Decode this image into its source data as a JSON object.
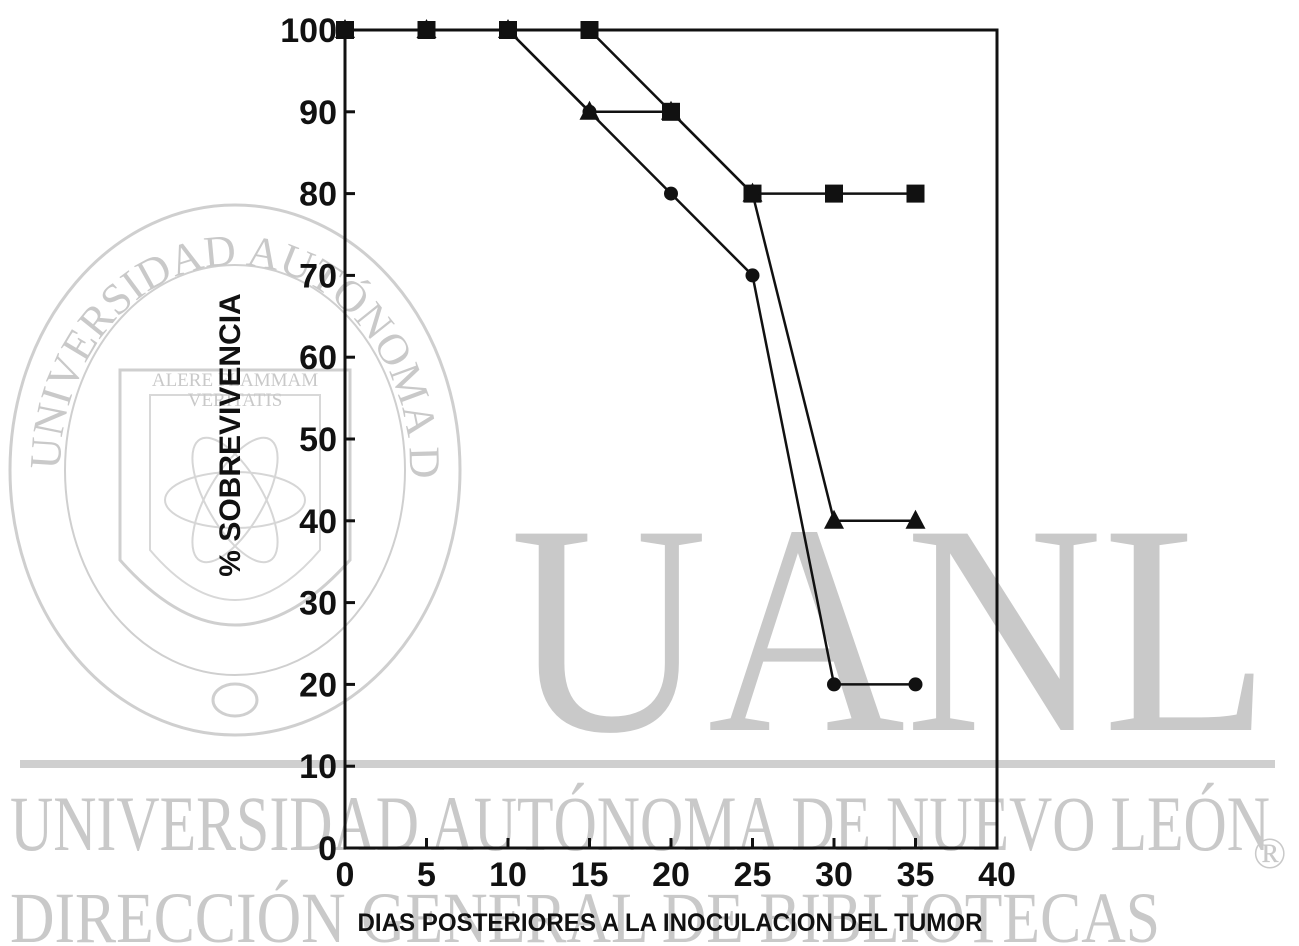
{
  "watermark": {
    "ring_text": "UNIVERSIDAD AUTÓNOMA DE NUEVO LEÓN",
    "motto_line1": "ALERE FLAMMAM",
    "motto_line2": "VERITATIS",
    "big_letters": "UANL",
    "university_line": "UNIVERSIDAD AUTÓNOMA DE NUEVO LEÓN",
    "direction_line": "DIRECCIÓN GENERAL DE BIBLIOTECAS",
    "registered_mark": "®",
    "color": "#c9c9c9"
  },
  "chart_data": {
    "type": "line",
    "title": "",
    "xlabel": "DIAS POSTERIORES A LA INOCULACION DEL TUMOR",
    "ylabel": "% SOBREVIVENCIA",
    "xlim": [
      0,
      40
    ],
    "ylim": [
      0,
      100
    ],
    "x_ticks": [
      0,
      5,
      10,
      15,
      20,
      25,
      30,
      35,
      40
    ],
    "y_ticks": [
      0,
      10,
      20,
      30,
      40,
      50,
      60,
      70,
      80,
      90,
      100
    ],
    "grid": false,
    "legend": "none",
    "series": [
      {
        "marker": "square",
        "x": [
          0,
          5,
          10,
          15,
          20,
          25,
          30,
          35
        ],
        "values": [
          100,
          100,
          100,
          100,
          90,
          80,
          80,
          80
        ]
      },
      {
        "marker": "triangle",
        "x": [
          0,
          5,
          10,
          15,
          20,
          25,
          30,
          35
        ],
        "values": [
          100,
          100,
          100,
          90,
          90,
          80,
          40,
          40
        ]
      },
      {
        "marker": "circle",
        "x": [
          0,
          5,
          10,
          15,
          20,
          25,
          30,
          35
        ],
        "values": [
          100,
          100,
          100,
          90,
          80,
          70,
          20,
          20
        ]
      }
    ]
  }
}
